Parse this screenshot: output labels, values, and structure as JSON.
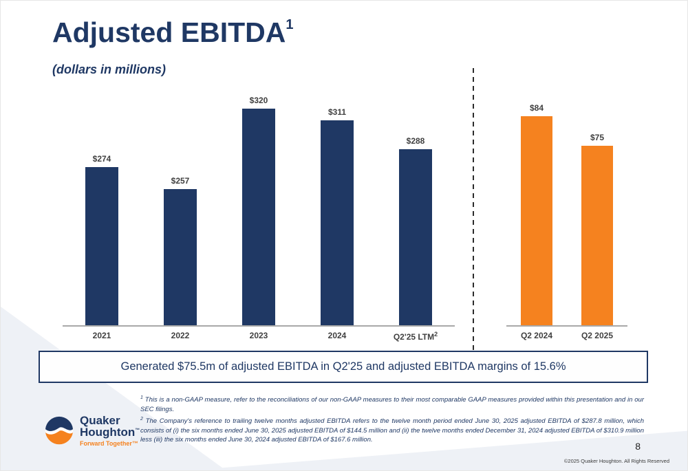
{
  "slide": {
    "title": "Adjusted EBITDA",
    "title_sup": "1",
    "subtitle": "(dollars in millions)",
    "callout": "Generated $75.5m of adjusted EBITDA in Q2'25 and adjusted EBITDA margins of 15.6%",
    "page_number": "8",
    "copyright": "©2025 Quaker Houghton. All Rights Reserved"
  },
  "footnotes": [
    {
      "sup": "1",
      "text": "This is a non-GAAP measure, refer to the reconciliations of our non-GAAP measures to their most comparable GAAP measures provided within this presentation and in our SEC filings."
    },
    {
      "sup": "2",
      "text": "The Company's reference to trailing twelve months adjusted EBITDA refers to the twelve month period ended June 30, 2025 adjusted EBITDA of $287.8 million, which consists of (i) the six months ended June 30, 2025 adjusted EBITDA of $144.5 million and (ii) the twelve months ended December 31, 2024 adjusted EBITDA of $310.9 million less (iii) the six months ended June 30, 2024 adjusted EBITDA of $167.6 million."
    }
  ],
  "logo": {
    "line1": "Quaker",
    "line2": "Houghton",
    "tm": "™",
    "tagline": "Forward Together™"
  },
  "colors": {
    "navy": "#1f3864",
    "orange": "#f5821f",
    "axis": "#a8a8a8",
    "value_label": "#404040",
    "background_accent": "#eef1f6"
  },
  "chart_data": [
    {
      "type": "bar",
      "categories": [
        "2021",
        "2022",
        "2023",
        "2024",
        "Q2'25 LTM"
      ],
      "category_sups": [
        "",
        "",
        "",
        "",
        "2"
      ],
      "values": [
        274,
        257,
        320,
        311,
        288
      ],
      "labels": [
        "$274",
        "$257",
        "$320",
        "$311",
        "$288"
      ],
      "bar_color": "#1f3864",
      "ylim": [
        150,
        320
      ],
      "grid": false,
      "legend": false
    },
    {
      "type": "bar",
      "categories": [
        "Q2 2024",
        "Q2 2025"
      ],
      "category_sups": [
        "",
        ""
      ],
      "values": [
        84,
        75
      ],
      "labels": [
        "$84",
        "$75"
      ],
      "bar_color": "#f5821f",
      "ylim": [
        20,
        84
      ],
      "grid": false,
      "legend": false
    }
  ]
}
